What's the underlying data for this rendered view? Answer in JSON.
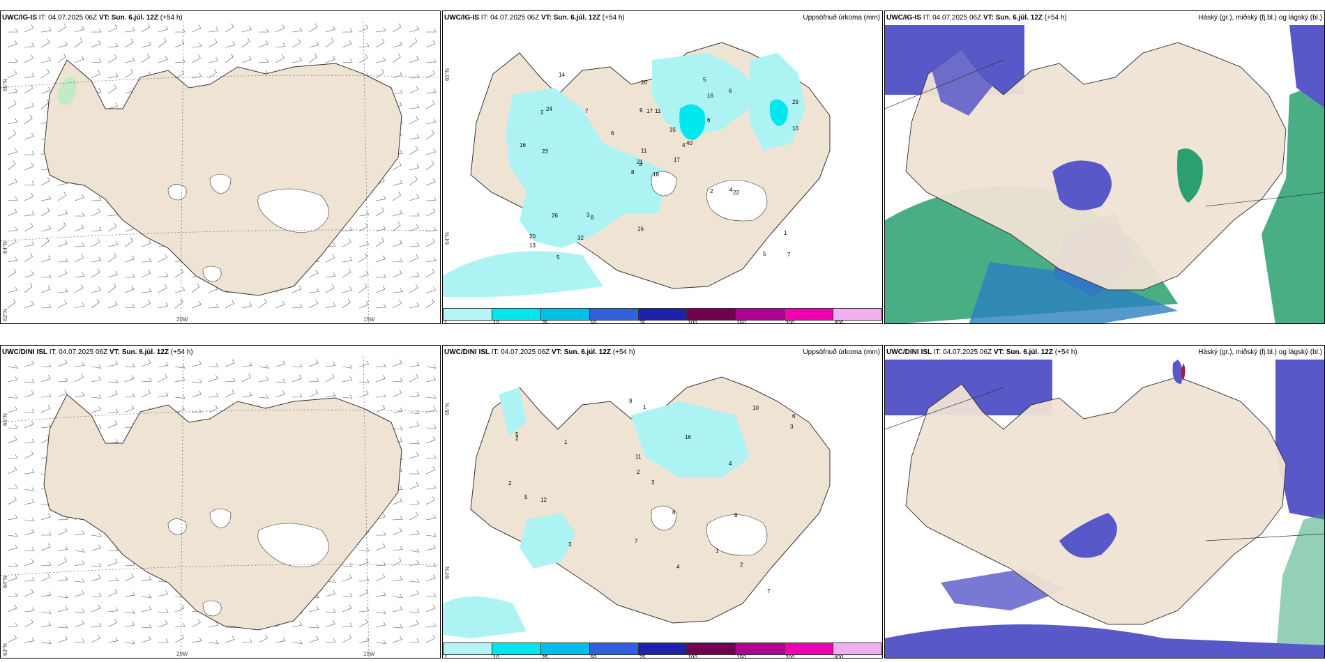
{
  "rows": [
    {
      "wind": {
        "model": "UWC/IG-IS",
        "it_label": "IT:",
        "it_value": "04.07.2025 06Z",
        "vt_label": "VT:",
        "vt_value": "Sun. 6.júl. 12Z",
        "lead": "(+54 h)",
        "lat_labels": [
          "65°N",
          "64°N",
          "63°N"
        ],
        "lon_labels": [
          "20W",
          "15W"
        ]
      },
      "precip": {
        "model": "UWC/IG-IS",
        "it_label": "IT:",
        "it_value": "04.07.2025 06Z",
        "vt_label": "VT:",
        "vt_value": "Sun. 6.júl. 12Z",
        "lead": "(+54 h)",
        "title": "Uppsöfnuð úrkoma (mm)",
        "lat_labels": [
          "65°N",
          "64°N"
        ],
        "values": [
          "18",
          "2",
          "3",
          "20",
          "4",
          "8",
          "5",
          "11",
          "16",
          "17",
          "14",
          "7",
          "23",
          "29",
          "8",
          "6",
          "5",
          "9",
          "35",
          "26",
          "6",
          "13",
          "32",
          "17",
          "40",
          "22",
          "24",
          "20",
          "16",
          "2",
          "10",
          "21",
          "16",
          "11",
          "7",
          "6",
          "3",
          "5",
          "1",
          "4"
        ]
      },
      "cloud": {
        "model": "UWC/IG-IS",
        "it_label": "IT:",
        "it_value": "04.07.2025 06Z",
        "vt_label": "VT:",
        "vt_value": "Sun. 6.júl. 12Z",
        "lead": "(+54 h)",
        "title": "Háský (gr.), miðský (fj.bl.) og lágský (bl.)"
      }
    },
    {
      "wind": {
        "model": "UWC/DINI ISL",
        "it_label": "IT:",
        "it_value": "04.07.2025 06Z",
        "vt_label": "VT:",
        "vt_value": "Sun. 6.júl. 12Z",
        "lead": "(+54 h)",
        "lat_labels": [
          "65°N",
          "64°N",
          "63°N"
        ],
        "lon_labels": [
          "20W",
          "15W"
        ]
      },
      "precip": {
        "model": "UWC/DINI ISL",
        "it_label": "IT:",
        "it_value": "04.07.2025 06Z",
        "vt_label": "VT:",
        "vt_value": "Sun. 6.júl. 12Z",
        "lead": "(+54 h)",
        "title": "Uppsöfnuð úrkoma (mm)",
        "lat_labels": [
          "65°N",
          "64°N"
        ],
        "values": [
          "2",
          "1",
          "4",
          "6",
          "5",
          "7",
          "12",
          "16",
          "11",
          "10",
          "3",
          "8",
          "9",
          "2",
          "1",
          "3",
          "4",
          "5",
          "6",
          "7",
          "1",
          "2",
          "3",
          "2"
        ]
      },
      "cloud": {
        "model": "UWC/DINI ISL",
        "it_label": "IT:",
        "it_value": "04.07.2025 06Z",
        "vt_label": "VT:",
        "vt_value": "Sun. 6.júl. 12Z",
        "lead": "(+54 h)",
        "title": "Háský (gr.), miðský (fj.bl.) og lágský (bl.)"
      }
    }
  ],
  "legend": {
    "labels": [
      "1",
      "10",
      "25",
      "50",
      "75",
      "100",
      "150",
      "200",
      "400"
    ],
    "colors": [
      "#b4f5f5",
      "#00e8ee",
      "#00c0e8",
      "#3060e0",
      "#2020b0",
      "#700050",
      "#b00090",
      "#f000b0",
      "#f0b0f0"
    ]
  },
  "colors": {
    "land": "#efe3d4",
    "rain": "#aef3f3",
    "mid_cloud": "#5858c8",
    "high_cloud": "#2aa070",
    "low_cloud": "#2a80c0"
  }
}
